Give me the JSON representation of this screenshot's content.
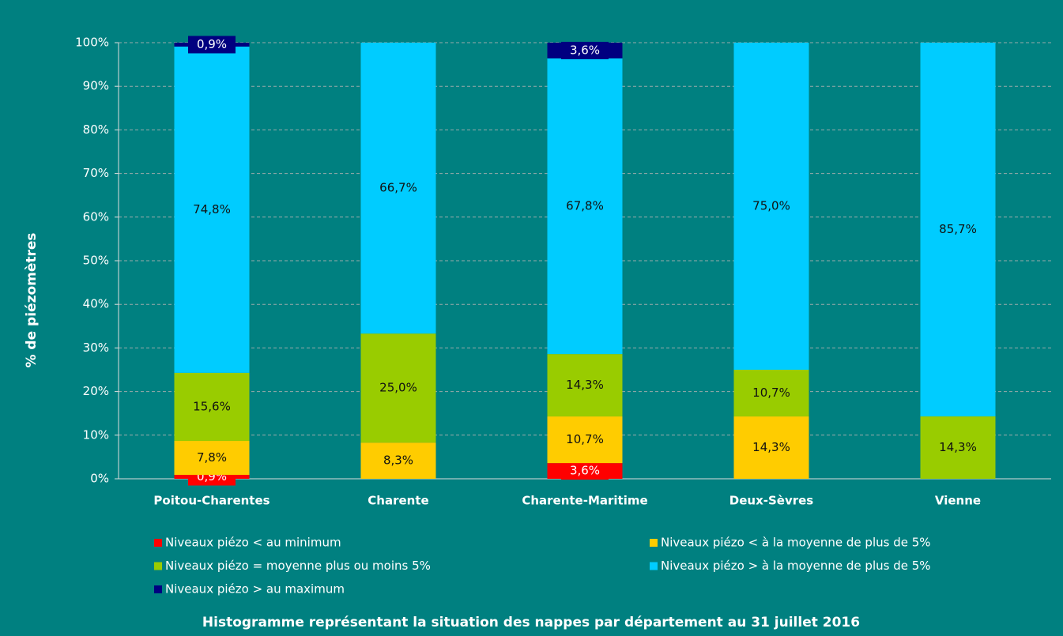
{
  "chart_data": {
    "type": "stacked_bar",
    "caption": "Histogramme représentant la situation des nappes par département au 31 juillet 2016",
    "y_label": "% de piézomètres",
    "categories": [
      "Poitou-Charentes",
      "Charente",
      "Charente-Maritime",
      "Deux-Sèvres",
      "Vienne"
    ],
    "series": [
      {
        "name": "Niveaux piézo < au minimum",
        "color": "#ff0000",
        "values": [
          0.9,
          0,
          3.6,
          0,
          0
        ],
        "value_labels": [
          "0,9%",
          null,
          "3,6%",
          null,
          null
        ]
      },
      {
        "name": "Niveaux piézo < à la moyenne de plus de 5%",
        "color": "#ffcc00",
        "values": [
          7.8,
          8.3,
          10.7,
          14.3,
          0
        ],
        "value_labels": [
          "7,8%",
          "8,3%",
          "10,7%",
          "14,3%",
          null
        ]
      },
      {
        "name": "Niveaux piézo = moyenne plus ou moins 5%",
        "color": "#99cc00",
        "values": [
          15.6,
          25.0,
          14.3,
          10.7,
          14.3
        ],
        "value_labels": [
          "15,6%",
          "25,0%",
          "14,3%",
          "10,7%",
          "14,3%"
        ]
      },
      {
        "name": "Niveaux piézo > à la moyenne de plus de 5%",
        "color": "#00ccff",
        "values": [
          74.8,
          66.7,
          67.8,
          75.0,
          85.7
        ],
        "value_labels": [
          "74,8%",
          "66,7%",
          "67,8%",
          "75,0%",
          "85,7%"
        ]
      },
      {
        "name": "Niveaux piézo > au maximum",
        "color": "#000080",
        "values": [
          0.9,
          0,
          3.6,
          0,
          0
        ],
        "value_labels": [
          "0,9%",
          null,
          "3,6%",
          null,
          null
        ]
      }
    ],
    "ylim": [
      0,
      100
    ],
    "yticks": [
      {
        "value": 0,
        "label": "0%"
      },
      {
        "value": 10,
        "label": "10%"
      },
      {
        "value": 20,
        "label": "20%"
      },
      {
        "value": 30,
        "label": "30%"
      },
      {
        "value": 40,
        "label": "40%"
      },
      {
        "value": 50,
        "label": "50%"
      },
      {
        "value": 60,
        "label": "60%"
      },
      {
        "value": 70,
        "label": "70%"
      },
      {
        "value": 80,
        "label": "80%"
      },
      {
        "value": 90,
        "label": "90%"
      },
      {
        "value": 100,
        "label": "100%"
      }
    ],
    "grid": true
  }
}
